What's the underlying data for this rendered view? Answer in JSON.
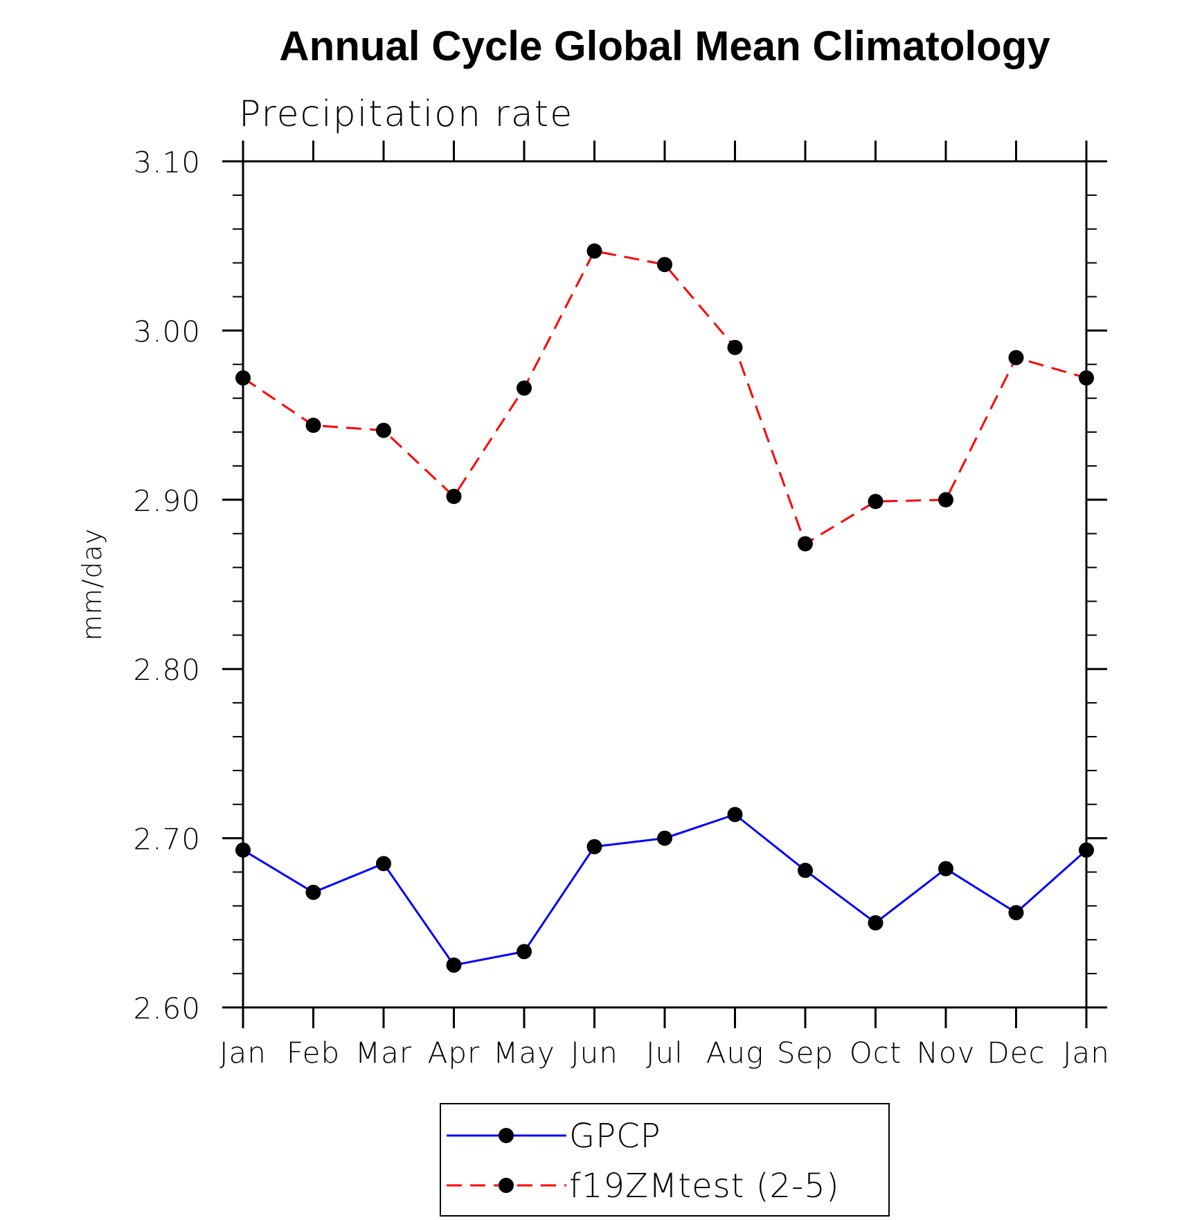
{
  "chart_data": {
    "type": "line",
    "title": "Annual Cycle Global Mean Climatology",
    "subtitle": "Precipitation rate",
    "ylabel": "mm/day",
    "xlabel": "",
    "categories": [
      "Jan",
      "Feb",
      "Mar",
      "Apr",
      "May",
      "Jun",
      "Jul",
      "Aug",
      "Sep",
      "Oct",
      "Nov",
      "Dec",
      "Jan"
    ],
    "ylim": [
      2.6,
      3.1
    ],
    "yticks": [
      "2.60",
      "2.70",
      "2.80",
      "2.90",
      "3.00",
      "3.10"
    ],
    "ytick_values": [
      2.6,
      2.7,
      2.8,
      2.9,
      3.0,
      3.1
    ],
    "grid": false,
    "legend_position": "bottom-center",
    "series": [
      {
        "name": "GPCP",
        "color": "#0000ff",
        "line_style": "solid",
        "marker": "filled-circle",
        "values": [
          2.693,
          2.668,
          2.685,
          2.625,
          2.633,
          2.695,
          2.7,
          2.714,
          2.681,
          2.65,
          2.682,
          2.656,
          2.693
        ]
      },
      {
        "name": "f19ZMtest (2-5)",
        "color": "#ff0000",
        "line_style": "dashed",
        "marker": "filled-circle",
        "values": [
          2.972,
          2.944,
          2.941,
          2.902,
          2.966,
          3.047,
          3.039,
          2.99,
          2.874,
          2.899,
          2.9,
          2.984,
          2.972
        ]
      }
    ]
  }
}
